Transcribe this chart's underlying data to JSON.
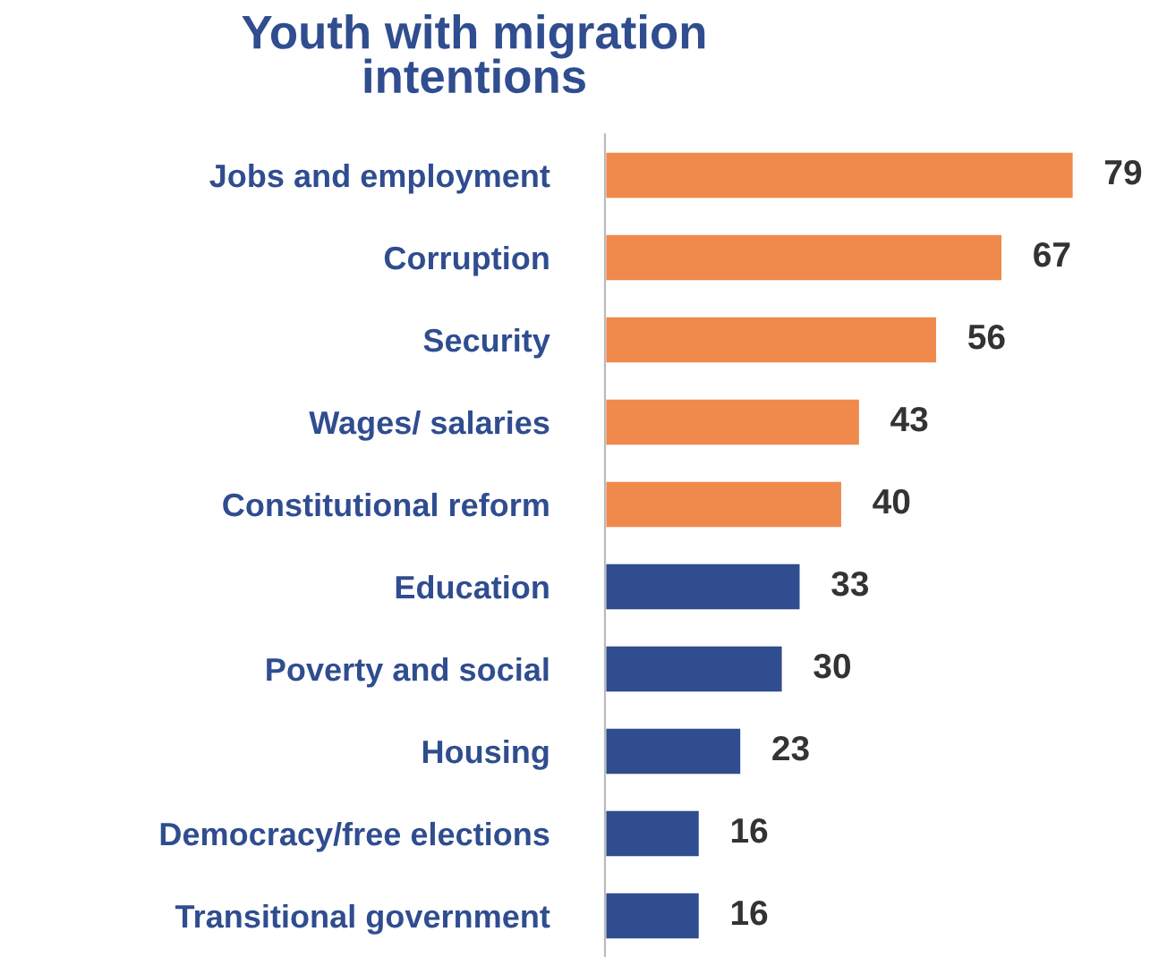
{
  "chart_data": {
    "type": "bar",
    "orientation": "horizontal",
    "title": "Youth with migration\nintentions",
    "categories": [
      "Jobs and employment",
      "Corruption",
      "Security",
      "Wages/ salaries",
      "Constitutional reform",
      "Education",
      "Poverty and social",
      "Housing",
      "Democracy/free elections",
      "Transitional government"
    ],
    "values": [
      79,
      67,
      56,
      43,
      40,
      33,
      30,
      23,
      16,
      16
    ],
    "colors": [
      "#ef8a4c",
      "#ef8a4c",
      "#ef8a4c",
      "#ef8a4c",
      "#ef8a4c",
      "#2f4d8f",
      "#2f4d8f",
      "#2f4d8f",
      "#2f4d8f",
      "#2f4d8f"
    ],
    "data_labels": true,
    "grid": false,
    "legend": false
  }
}
